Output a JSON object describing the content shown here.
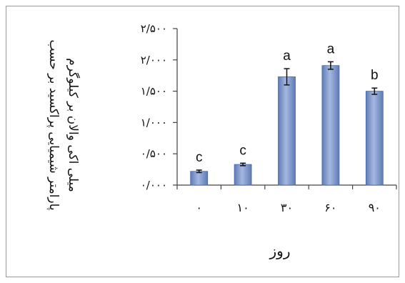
{
  "chart_data": {
    "type": "bar",
    "categories": [
      "۰",
      "۱۰",
      "۳۰",
      "۶۰",
      "۹۰"
    ],
    "values": [
      0.22,
      0.33,
      1.73,
      1.91,
      1.5
    ],
    "errors": [
      0.02,
      0.02,
      0.13,
      0.06,
      0.05
    ],
    "letters": [
      "c",
      "c",
      "a",
      "a",
      "b"
    ],
    "ylim": [
      0,
      2.5
    ],
    "yticks": [
      0,
      0.5,
      1.0,
      1.5,
      2.0,
      2.5
    ],
    "ytick_labels": [
      "۰/۰۰۰",
      "۰/۵۰۰",
      "۱/۰۰۰",
      "۱/۵۰۰",
      "۲/۰۰۰",
      "۲/۵۰۰"
    ],
    "xlabel": "روز",
    "ylabel_lines": [
      "پارامتر شیمیایی پراکسید بر حسب",
      "میلی اکی والان بر کیلوگرم"
    ],
    "grid": false,
    "colors": {
      "bar_fill": "#7f96c6",
      "bar_edge": "#4a6aa8",
      "axis": "#444444"
    }
  }
}
